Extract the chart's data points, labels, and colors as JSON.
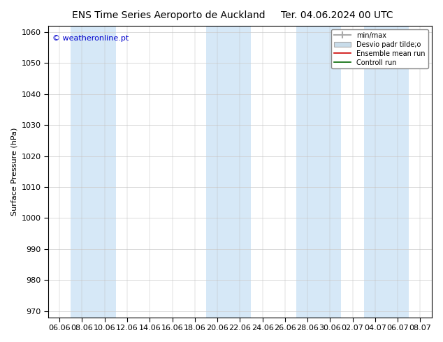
{
  "title_left": "ENS Time Series Aeroporto de Auckland",
  "title_right": "Ter. 04.06.2024 00 UTC",
  "ylabel": "Surface Pressure (hPa)",
  "ylim": [
    968,
    1062
  ],
  "yticks": [
    970,
    980,
    990,
    1000,
    1010,
    1020,
    1030,
    1040,
    1050,
    1060
  ],
  "watermark": "© weatheronline.pt",
  "bg_color": "#ffffff",
  "plot_bg_color": "#ffffff",
  "band_color": "#d6e8f7",
  "legend_labels": [
    "min/max",
    "Desvio padr tilde;o",
    "Ensemble mean run",
    "Controll run"
  ],
  "legend_colors": [
    "#888888",
    "#c8dcea",
    "#ff0000",
    "#008000"
  ],
  "x_tick_labels": [
    "06.06",
    "08.06",
    "10.06",
    "12.06",
    "14.06",
    "16.06",
    "18.06",
    "20.06",
    "22.06",
    "24.06",
    "26.06",
    "28.06",
    "30.06",
    "02.07",
    "04.07",
    "06.07",
    "08.07"
  ],
  "band_indices": [
    1,
    2,
    7,
    8,
    11,
    12,
    14,
    15
  ],
  "title_fontsize": 10,
  "tick_fontsize": 8,
  "label_fontsize": 8,
  "watermark_color": "#0000cc",
  "watermark_fontsize": 8,
  "spine_color": "#000000"
}
